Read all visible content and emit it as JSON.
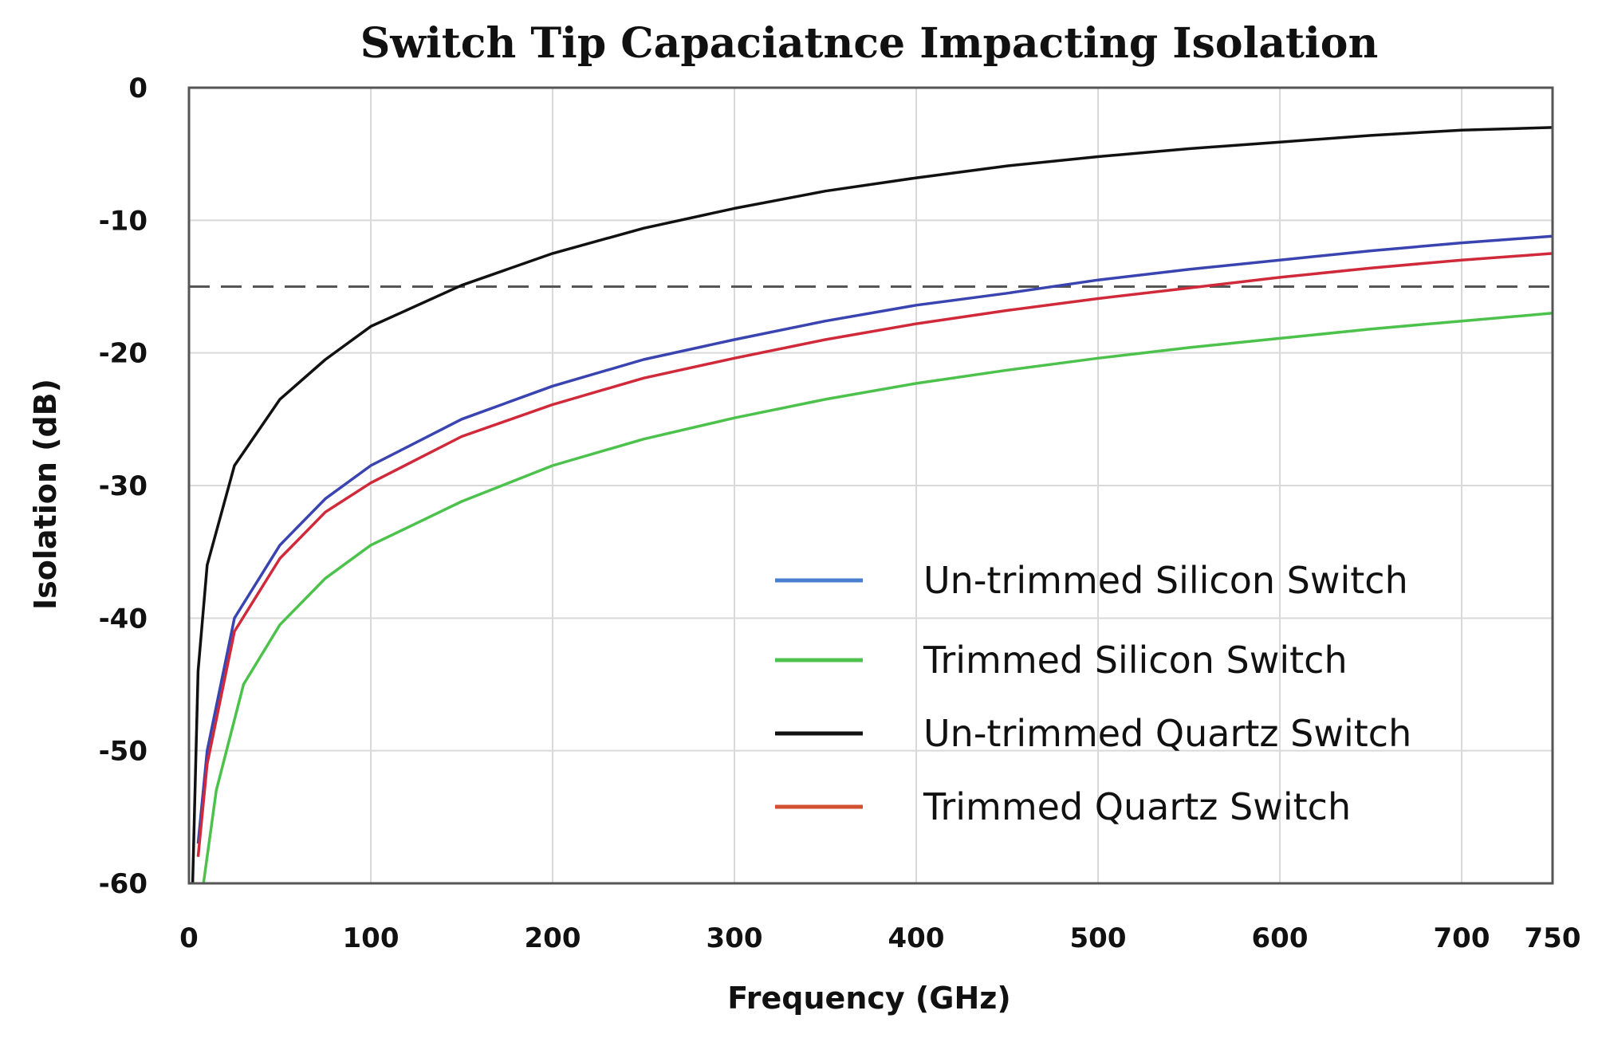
{
  "chart_data": {
    "type": "line",
    "title": "Switch Tip Capaciatnce Impacting Isolation",
    "xlabel": "Frequency (GHz)",
    "ylabel": "Isolation (dB)",
    "xlim": [
      0,
      750
    ],
    "ylim": [
      -60,
      0
    ],
    "xticks": [
      0,
      100,
      200,
      300,
      400,
      500,
      600,
      700,
      750
    ],
    "yticks": [
      0,
      -10,
      -20,
      -30,
      -40,
      -50,
      -60
    ],
    "grid": true,
    "legend_position": "bottom-right",
    "reference_line": {
      "y": -15,
      "style": "dashed",
      "color": "#555555"
    },
    "series": [
      {
        "name": "Un-trimmed Silicon Switch",
        "color": "#3a44b0",
        "legend_color": "#4a7fd0",
        "x": [
          5,
          10,
          25,
          50,
          75,
          100,
          150,
          200,
          250,
          300,
          350,
          400,
          450,
          500,
          550,
          600,
          650,
          700,
          750
        ],
        "y": [
          -57,
          -50,
          -40,
          -34.5,
          -31,
          -28.5,
          -25,
          -22.5,
          -20.5,
          -19,
          -17.6,
          -16.4,
          -15.5,
          -14.5,
          -13.7,
          -13,
          -12.3,
          -11.7,
          -11.2
        ]
      },
      {
        "name": "Trimmed Silicon Switch",
        "color": "#4cc24c",
        "legend_color": "#4cc24c",
        "x": [
          8,
          15,
          30,
          50,
          75,
          100,
          150,
          200,
          250,
          300,
          350,
          400,
          450,
          500,
          550,
          600,
          650,
          700,
          750
        ],
        "y": [
          -60,
          -53,
          -45,
          -40.5,
          -37,
          -34.5,
          -31.2,
          -28.5,
          -26.5,
          -24.9,
          -23.5,
          -22.3,
          -21.3,
          -20.4,
          -19.6,
          -18.9,
          -18.2,
          -17.6,
          -17
        ]
      },
      {
        "name": "Un-trimmed Quartz Switch",
        "color": "#111111",
        "legend_color": "#111111",
        "x": [
          2,
          5,
          10,
          25,
          50,
          75,
          100,
          150,
          200,
          250,
          300,
          350,
          400,
          450,
          500,
          550,
          600,
          650,
          700,
          750
        ],
        "y": [
          -60,
          -44,
          -36,
          -28.5,
          -23.5,
          -20.5,
          -18,
          -14.9,
          -12.5,
          -10.6,
          -9.1,
          -7.8,
          -6.8,
          -5.9,
          -5.2,
          -4.6,
          -4.1,
          -3.6,
          -3.2,
          -3
        ]
      },
      {
        "name": "Trimmed Quartz Switch",
        "color": "#d02a3a",
        "legend_color": "#d05030",
        "x": [
          5,
          10,
          25,
          50,
          75,
          100,
          150,
          200,
          250,
          300,
          350,
          400,
          450,
          500,
          550,
          600,
          650,
          700,
          750
        ],
        "y": [
          -58,
          -51,
          -41,
          -35.5,
          -32,
          -29.8,
          -26.3,
          -23.9,
          -21.9,
          -20.4,
          -19,
          -17.8,
          -16.8,
          -15.9,
          -15.1,
          -14.3,
          -13.6,
          -13,
          -12.5
        ]
      }
    ]
  }
}
